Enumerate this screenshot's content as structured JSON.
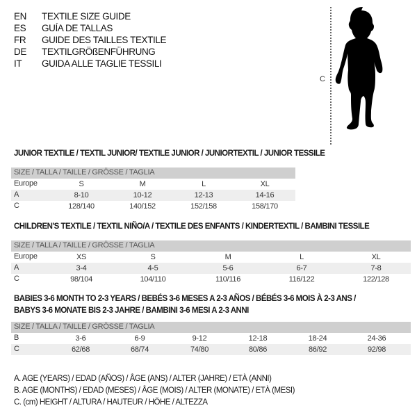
{
  "languages": [
    {
      "code": "EN",
      "title": "TEXTILE SIZE GUIDE"
    },
    {
      "code": "ES",
      "title": "GUÍA DE TALLAS"
    },
    {
      "code": "FR",
      "title": "GUIDE DES TAILLES TEXTILE"
    },
    {
      "code": "DE",
      "title": "TEXTILGRÖßENFÜHRUNG"
    },
    {
      "code": "IT",
      "title": "GUIDA ALLE TAGLIE TESSILI"
    }
  ],
  "figure": {
    "height_marker": "C",
    "icon": "child-silhouette-icon"
  },
  "tables": [
    {
      "title": "JUNIOR TEXTILE / TEXTIL JUNIOR/ TEXTILE JUNIOR / JUNIORTEXTIL / JUNIOR TESSILE",
      "header": "SIZE / TALLA / TAILLE / GRÖSSE / TAGLIA",
      "rows": [
        {
          "label": "Europe",
          "values": [
            "S",
            "M",
            "L",
            "XL"
          ]
        },
        {
          "label": "A",
          "values": [
            "8-10",
            "10-12",
            "12-13",
            "14-16"
          ]
        },
        {
          "label": "C",
          "values": [
            "128/140",
            "140/152",
            "152/158",
            "158/170"
          ]
        }
      ]
    },
    {
      "title": "CHILDREN'S TEXTILE / TEXTIL NIÑO/A / TEXTILE DES ENFANTS / KINDERTEXTIL / BAMBINI TESSILE",
      "header": "SIZE / TALLA / TAILLE / GRÖSSE / TAGLIA",
      "rows": [
        {
          "label": "Europe",
          "values": [
            "XS",
            "S",
            "M",
            "L",
            "XL"
          ]
        },
        {
          "label": "A",
          "values": [
            "3-4",
            "4-5",
            "5-6",
            "6-7",
            "7-8"
          ]
        },
        {
          "label": "C",
          "values": [
            "98/104",
            "104/110",
            "110/116",
            "116/122",
            "122/128"
          ]
        }
      ]
    },
    {
      "title": "BABIES 3-6 MONTH TO 2-3 YEARS / BEBÉS 3-6 MESES A 2-3 AÑOS / BÉBÉS 3-6 MOIS À 2-3 ANS /",
      "title2": "BABYS 3-6 MONATE BIS 2-3 JAHRE / BAMBINI 3-6 MESI A 2-3 ANNI",
      "header": "SIZE / TALLA / TAILLE / GRÖSSE / TAGLIA",
      "rows": [
        {
          "label": "B",
          "values": [
            "3-6",
            "6-9",
            "9-12",
            "12-18",
            "18-24",
            "24-36"
          ]
        },
        {
          "label": "C",
          "values": [
            "62/68",
            "68/74",
            "74/80",
            "80/86",
            "86/92",
            "92/98"
          ]
        }
      ]
    }
  ],
  "legend": [
    "A. AGE (YEARS) / EDAD (AÑOS) / ÂGE (ANS) / ALTER (JAHRE) / ETÀ (ANNI)",
    "B. AGE (MONTHS) / EDAD (MESES) / ÂGE (MOIS) / ALTER (MONATE) / ETÀ (MESI)",
    "C. (cm) HEIGHT / ALTURA / HAUTEUR / HÖHE / ALTEZZA"
  ]
}
